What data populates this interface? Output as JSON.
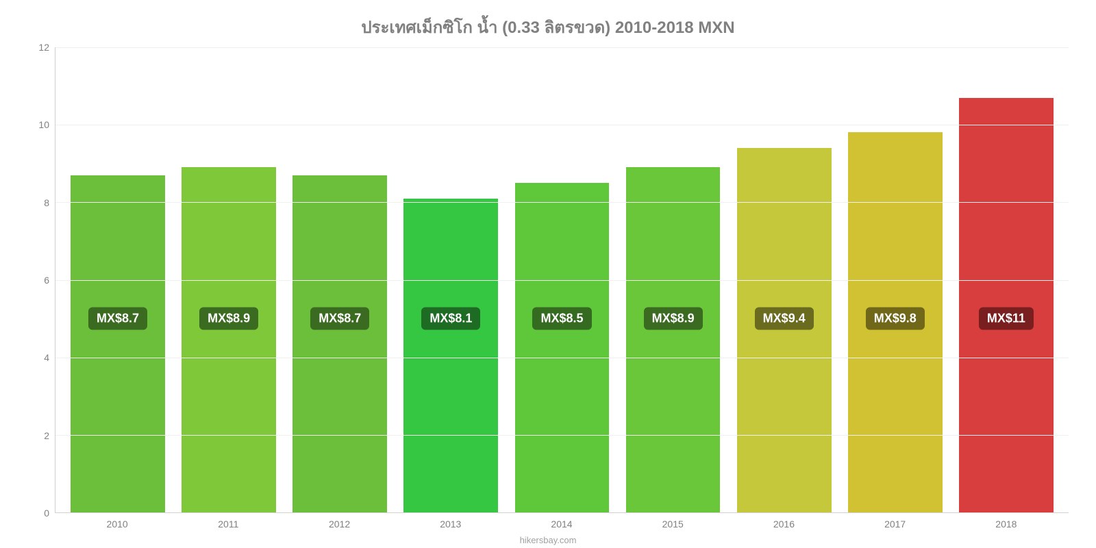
{
  "chart": {
    "type": "bar",
    "title": "ประเทศเม็กซิโก น้ำ (0.33 ลิตรขวด) 2010-2018 MXN",
    "title_color": "#808080",
    "title_fontsize": 24,
    "background_color": "#ffffff",
    "grid_color": "#f0f0f0",
    "axis_color": "#d0d0d0",
    "tick_color": "#808080",
    "ylim": [
      0,
      12
    ],
    "yticks": [
      0,
      2,
      4,
      6,
      8,
      10,
      12
    ],
    "categories": [
      "2010",
      "2011",
      "2012",
      "2013",
      "2014",
      "2015",
      "2016",
      "2017",
      "2018"
    ],
    "values": [
      8.7,
      8.9,
      8.7,
      8.1,
      8.5,
      8.9,
      9.4,
      9.8,
      10.7
    ],
    "bar_colors": [
      "#6bbf3a",
      "#7ec83a",
      "#6bbf3a",
      "#36c742",
      "#5ec73a",
      "#6bc73a",
      "#c4c83a",
      "#d0c232",
      "#d93e3e"
    ],
    "bar_labels": [
      "MX$8.7",
      "MX$8.9",
      "MX$8.7",
      "MX$8.1",
      "MX$8.5",
      "MX$8.9",
      "MX$9.4",
      "MX$9.8",
      "MX$11"
    ],
    "label_bg_colors": [
      "#3a6b20",
      "#3a6b20",
      "#3a6b20",
      "#1e6b24",
      "#346b20",
      "#3a6b20",
      "#6b6b20",
      "#706818",
      "#7a1f1f"
    ],
    "label_fontsize": 18,
    "bar_width": 0.85,
    "attribution": "hikersbay.com"
  }
}
